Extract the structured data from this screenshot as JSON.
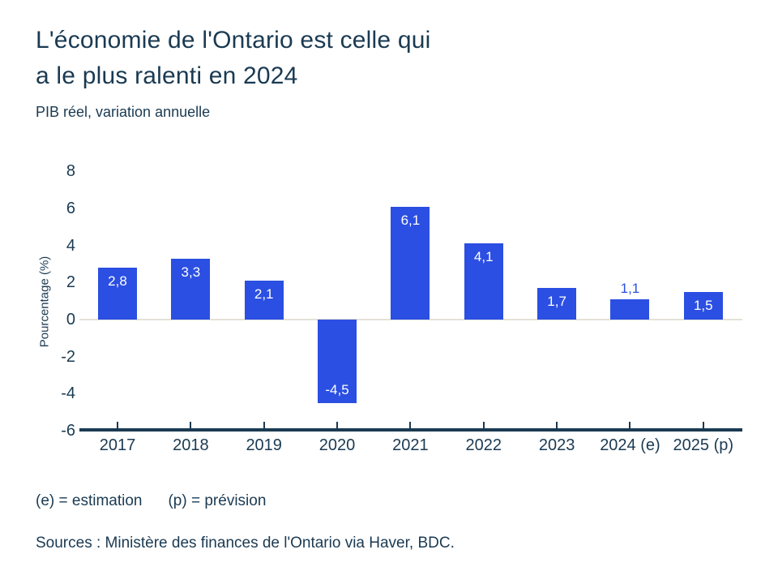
{
  "header": {
    "title_line1": "L'économie de l'Ontario est celle qui",
    "title_line2": "a le plus ralenti en 2024",
    "subtitle": "PIB réel, variation annuelle"
  },
  "chart_data": {
    "type": "bar",
    "title": "L'économie de l'Ontario est celle qui a le plus ralenti en 2024",
    "subtitle": "PIB réel, variation annuelle",
    "categories": [
      "2017",
      "2018",
      "2019",
      "2020",
      "2021",
      "2022",
      "2023",
      "2024 (e)",
      "2025 (p)"
    ],
    "values": [
      2.8,
      3.3,
      2.1,
      -4.5,
      6.1,
      4.1,
      1.7,
      1.1,
      1.5
    ],
    "value_labels": [
      "2,8",
      "3,3",
      "2,1",
      "-4,5",
      "6,1",
      "4,1",
      "1,7",
      "1,1",
      "1,5"
    ],
    "xlabel": "",
    "ylabel": "Pourcentage (%)",
    "ylim": [
      -6,
      8
    ],
    "yticks": [
      8,
      6,
      4,
      2,
      0,
      -2,
      -4,
      -6
    ],
    "ytick_labels": [
      "8",
      "6",
      "4",
      "2",
      "0",
      "-2",
      "-4",
      "-6"
    ],
    "grid": false,
    "legend": null
  },
  "footer": {
    "note_estimation": "(e) = estimation",
    "note_prevision": "(p) = prévision",
    "sources": "Sources : Ministère des finances de l'Ontario via Haver, BDC."
  },
  "colors": {
    "text": "#1A3A52",
    "bar": "#2B4FE2",
    "label_inside": "#FFFFFF",
    "label_outside": "#2B4FE2",
    "zero_line": "#E5E1D8",
    "axis_line": "#1A3A52",
    "background": "#FFFFFF"
  }
}
